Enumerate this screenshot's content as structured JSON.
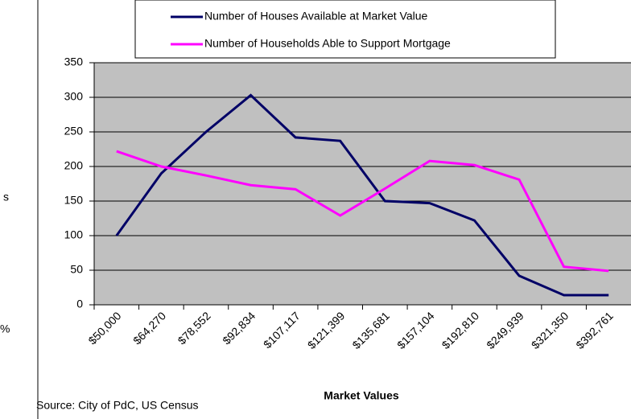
{
  "chart_data": {
    "type": "line",
    "x_label": "Market Values",
    "source": "Source: City of PdC, US Census",
    "fragments": [
      "s",
      "%"
    ],
    "categories": [
      "$50,000",
      "$64,270",
      "$78,552",
      "$92,834",
      "$107,117",
      "$121,399",
      "$135,681",
      "$157,104",
      "$192,810",
      "$249,939",
      "$321,350",
      "$392,761"
    ],
    "series": [
      {
        "name": "Number of Houses Available at Market Value",
        "color": "#000066",
        "values": [
          100,
          190,
          250,
          303,
          242,
          237,
          150,
          147,
          122,
          42,
          14,
          14
        ]
      },
      {
        "name": "Number of Households Able to Support Mortgage",
        "color": "#ff00ff",
        "values": [
          222,
          200,
          187,
          173,
          167,
          129,
          168,
          208,
          202,
          181,
          55,
          49
        ]
      }
    ],
    "ylim": [
      0,
      350
    ],
    "yticks": [
      0,
      50,
      100,
      150,
      200,
      250,
      300,
      350
    ],
    "grid": true,
    "plot_background": "#c0c0c0"
  }
}
